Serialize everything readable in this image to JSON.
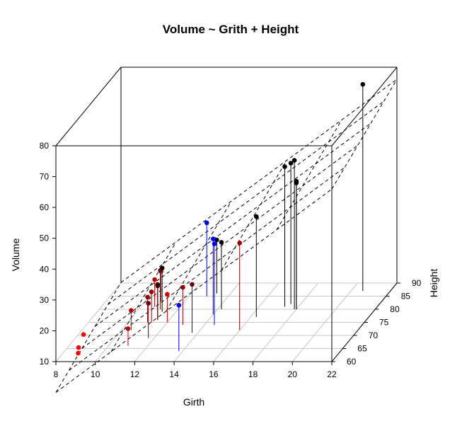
{
  "chart_data": {
    "type": "scatter",
    "title": "Volume ~ Grith + Height",
    "xlabel": "Girth",
    "ylabel": "Height",
    "zlabel": "Volume",
    "xlim": [
      8,
      22
    ],
    "ylim": [
      60,
      90
    ],
    "zlim": [
      10,
      80
    ],
    "xticks": [
      "8",
      "10",
      "12",
      "14",
      "16",
      "18",
      "20",
      "22"
    ],
    "yticks": [
      "60",
      "65",
      "70",
      "75",
      "80",
      "85",
      "90"
    ],
    "zticks": [
      "10",
      "20",
      "30",
      "40",
      "50",
      "60",
      "70",
      "80"
    ],
    "plane": {
      "intercept": -57.99,
      "girth_coef": 4.708,
      "height_coef": 0.339
    },
    "colors": {
      "above_plane": "#0000ff",
      "below_plane": "#aa0000",
      "near_plane": "#000000"
    },
    "points": [
      {
        "girth": 8.3,
        "height": 70,
        "volume": 10.3,
        "color": "#ff0000"
      },
      {
        "girth": 8.6,
        "height": 65,
        "volume": 10.3,
        "color": "#ff0000"
      },
      {
        "girth": 8.8,
        "height": 63,
        "volume": 10.2,
        "color": "#ff0000"
      },
      {
        "girth": 10.5,
        "height": 72,
        "volume": 16.4,
        "color": "#c00000"
      },
      {
        "girth": 10.7,
        "height": 81,
        "volume": 18.8,
        "color": "#c00000"
      },
      {
        "girth": 10.8,
        "height": 83,
        "volume": 19.7,
        "color": "#c00000"
      },
      {
        "girth": 11.0,
        "height": 66,
        "volume": 15.6,
        "color": "#c00000"
      },
      {
        "girth": 11.0,
        "height": 75,
        "volume": 18.2,
        "color": "#990000"
      },
      {
        "girth": 11.1,
        "height": 80,
        "volume": 22.6,
        "color": "#660000"
      },
      {
        "girth": 11.2,
        "height": 75,
        "volume": 19.9,
        "color": "#990000"
      },
      {
        "girth": 11.3,
        "height": 79,
        "volume": 24.2,
        "color": "#000000"
      },
      {
        "girth": 11.4,
        "height": 76,
        "volume": 21.0,
        "color": "#330000"
      },
      {
        "girth": 11.4,
        "height": 76,
        "volume": 21.4,
        "color": "#330000"
      },
      {
        "girth": 11.7,
        "height": 69,
        "volume": 21.3,
        "color": "#660000"
      },
      {
        "girth": 12.0,
        "height": 75,
        "volume": 19.1,
        "color": "#cc0000"
      },
      {
        "girth": 12.9,
        "height": 74,
        "volume": 22.2,
        "color": "#990000"
      },
      {
        "girth": 12.9,
        "height": 85,
        "volume": 33.8,
        "color": "#0000ff"
      },
      {
        "girth": 13.3,
        "height": 86,
        "volume": 27.4,
        "color": "#000000"
      },
      {
        "girth": 13.7,
        "height": 71,
        "volume": 25.7,
        "color": "#660000"
      },
      {
        "girth": 13.8,
        "height": 64,
        "volume": 24.9,
        "color": "#0000ff"
      },
      {
        "girth": 14.0,
        "height": 78,
        "volume": 34.5,
        "color": "#0000ff"
      },
      {
        "girth": 14.2,
        "height": 80,
        "volume": 31.7,
        "color": "#000000"
      },
      {
        "girth": 14.5,
        "height": 74,
        "volume": 36.3,
        "color": "#0000ff"
      },
      {
        "girth": 16.0,
        "height": 72,
        "volume": 38.3,
        "color": "#990000"
      },
      {
        "girth": 16.3,
        "height": 77,
        "volume": 42.6,
        "color": "#000000"
      },
      {
        "girth": 17.3,
        "height": 81,
        "volume": 55.4,
        "color": "#000000"
      },
      {
        "girth": 17.5,
        "height": 82,
        "volume": 55.7,
        "color": "#000000"
      },
      {
        "girth": 17.9,
        "height": 80,
        "volume": 58.3,
        "color": "#000000"
      },
      {
        "girth": 18.0,
        "height": 80,
        "volume": 51.5,
        "color": "#000000"
      },
      {
        "girth": 18.0,
        "height": 80,
        "volume": 51.0,
        "color": "#000000"
      },
      {
        "girth": 20.6,
        "height": 87,
        "volume": 77.0,
        "color": "#000000"
      }
    ]
  }
}
